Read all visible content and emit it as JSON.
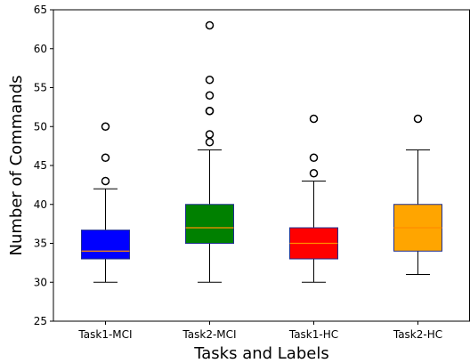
{
  "chart_data": {
    "type": "box",
    "xlabel": "Tasks and Labels",
    "ylabel": "Number of Commands",
    "ylim": [
      25,
      65
    ],
    "yticks": [
      25,
      30,
      35,
      40,
      45,
      50,
      55,
      60,
      65
    ],
    "grid": false,
    "median_color": "#ff8c00",
    "boxes": [
      {
        "category": "Task1-MCI",
        "color": "#0000ff",
        "whisker_low": 30,
        "q1": 33,
        "median": 34,
        "q3": 36.7,
        "whisker_high": 42,
        "outliers": [
          43,
          46,
          50
        ]
      },
      {
        "category": "Task2-MCI",
        "color": "#008000",
        "whisker_low": 30,
        "q1": 35,
        "median": 37,
        "q3": 40,
        "whisker_high": 47,
        "outliers": [
          48,
          49,
          52,
          52,
          54,
          56,
          63
        ]
      },
      {
        "category": "Task1-HC",
        "color": "#ff0000",
        "whisker_low": 30,
        "q1": 33,
        "median": 35,
        "q3": 37,
        "whisker_high": 43,
        "outliers": [
          44,
          46,
          51
        ]
      },
      {
        "category": "Task2-HC",
        "color": "#ffa500",
        "whisker_low": 31,
        "q1": 34,
        "median": 37,
        "q3": 40,
        "whisker_high": 47,
        "outliers": [
          51
        ]
      }
    ]
  }
}
